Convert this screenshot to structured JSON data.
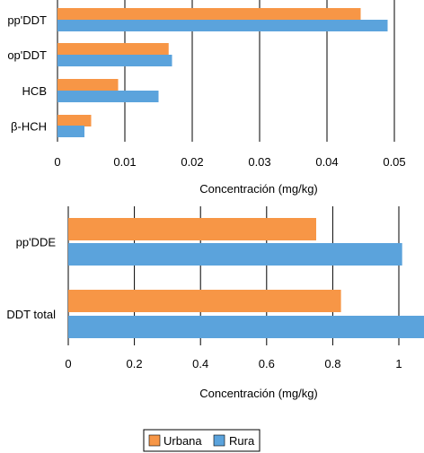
{
  "chart_data": [
    {
      "type": "bar",
      "orientation": "horizontal",
      "categories": [
        "pp'DDT",
        "op'DDT",
        "HCB",
        "β-HCH"
      ],
      "series": [
        {
          "name": "Urbana",
          "values": [
            0.045,
            0.0165,
            0.009,
            0.005
          ]
        },
        {
          "name": "Rura",
          "values": [
            0.049,
            0.017,
            0.015,
            0.004
          ]
        }
      ],
      "xlabel": "Concentración (mg/kg)",
      "ylabel": "",
      "xlim": [
        0,
        0.05
      ],
      "xticks": [
        "0",
        "0.01",
        "0.02",
        "0.03",
        "0.04",
        "0.05"
      ],
      "grid": "vertical"
    },
    {
      "type": "bar",
      "orientation": "horizontal",
      "categories": [
        "pp'DDE",
        "DDT total"
      ],
      "series": [
        {
          "name": "Urbana",
          "values": [
            0.75,
            0.825
          ]
        },
        {
          "name": "Rura",
          "values": [
            1.01,
            1.1
          ]
        }
      ],
      "xlabel": "Concentración (mg/kg)",
      "ylabel": "",
      "xlim": [
        0,
        1.0776
      ],
      "xticks": [
        "0",
        "0.2",
        "0.4",
        "0.6",
        "0.8",
        "1"
      ],
      "grid": "vertical"
    }
  ],
  "legend": {
    "position": "bottom",
    "items": [
      {
        "label": "Urbana",
        "color": "#F79646"
      },
      {
        "label": "Rura",
        "color": "#5BA3DC"
      }
    ]
  }
}
